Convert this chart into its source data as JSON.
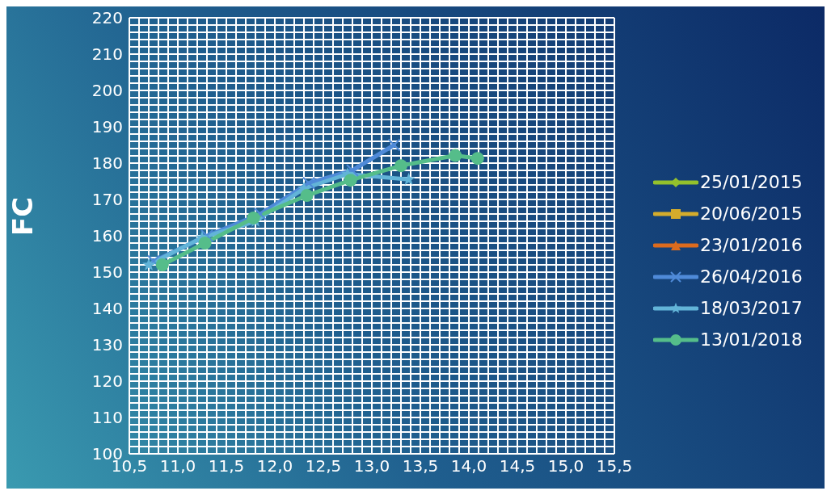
{
  "chart_data": {
    "type": "line",
    "ylabel": "FC",
    "xlim": [
      10.5,
      15.5
    ],
    "xticks": [
      {
        "value": 10.5,
        "label": "10,5"
      },
      {
        "value": 10.6,
        "label": null
      },
      {
        "value": 10.7,
        "label": null
      },
      {
        "value": 10.8,
        "label": null
      },
      {
        "value": 10.9,
        "label": null
      },
      {
        "value": 11,
        "label": "11,0"
      },
      {
        "value": 11.1,
        "label": null
      },
      {
        "value": 11.2,
        "label": null
      },
      {
        "value": 11.3,
        "label": null
      },
      {
        "value": 11.4,
        "label": null
      },
      {
        "value": 11.5,
        "label": "11,5"
      },
      {
        "value": 11.6,
        "label": null
      },
      {
        "value": 11.7,
        "label": null
      },
      {
        "value": 11.8,
        "label": null
      },
      {
        "value": 11.9,
        "label": null
      },
      {
        "value": 12,
        "label": "12,0"
      },
      {
        "value": 12.1,
        "label": null
      },
      {
        "value": 12.2,
        "label": null
      },
      {
        "value": 12.3,
        "label": null
      },
      {
        "value": 12.4,
        "label": null
      },
      {
        "value": 12.5,
        "label": "12,5"
      },
      {
        "value": 12.6,
        "label": null
      },
      {
        "value": 12.7,
        "label": null
      },
      {
        "value": 12.8,
        "label": null
      },
      {
        "value": 12.9,
        "label": null
      },
      {
        "value": 13,
        "label": "13,0"
      },
      {
        "value": 13.1,
        "label": null
      },
      {
        "value": 13.2,
        "label": null
      },
      {
        "value": 13.3,
        "label": null
      },
      {
        "value": 13.4,
        "label": null
      },
      {
        "value": 13.5,
        "label": "13,5"
      },
      {
        "value": 13.6,
        "label": null
      },
      {
        "value": 13.7,
        "label": null
      },
      {
        "value": 13.8,
        "label": null
      },
      {
        "value": 13.9,
        "label": null
      },
      {
        "value": 14,
        "label": "14,0"
      },
      {
        "value": 14.1,
        "label": null
      },
      {
        "value": 14.2,
        "label": null
      },
      {
        "value": 14.3,
        "label": null
      },
      {
        "value": 14.4,
        "label": null
      },
      {
        "value": 14.5,
        "label": "14,5"
      },
      {
        "value": 14.6,
        "label": null
      },
      {
        "value": 14.7,
        "label": null
      },
      {
        "value": 14.8,
        "label": null
      },
      {
        "value": 14.9,
        "label": null
      },
      {
        "value": 15,
        "label": "15,0"
      },
      {
        "value": 15.1,
        "label": null
      },
      {
        "value": 15.2,
        "label": null
      },
      {
        "value": 15.3,
        "label": null
      },
      {
        "value": 15.4,
        "label": null
      },
      {
        "value": 15.5,
        "label": "15,5"
      }
    ],
    "ylim": [
      100,
      220
    ],
    "yticks": [
      100,
      {
        "value": 102,
        "label": null
      },
      {
        "value": 104,
        "label": null
      },
      {
        "value": 106,
        "label": null
      },
      {
        "value": 108,
        "label": null
      },
      110,
      {
        "value": 112,
        "label": null
      },
      {
        "value": 114,
        "label": null
      },
      {
        "value": 116,
        "label": null
      },
      {
        "value": 118,
        "label": null
      },
      120,
      {
        "value": 122,
        "label": null
      },
      {
        "value": 124,
        "label": null
      },
      {
        "value": 126,
        "label": null
      },
      {
        "value": 128,
        "label": null
      },
      130,
      {
        "value": 132,
        "label": null
      },
      {
        "value": 134,
        "label": null
      },
      {
        "value": 136,
        "label": null
      },
      {
        "value": 138,
        "label": null
      },
      140,
      {
        "value": 142,
        "label": null
      },
      {
        "value": 144,
        "label": null
      },
      {
        "value": 146,
        "label": null
      },
      {
        "value": 148,
        "label": null
      },
      150,
      {
        "value": 152,
        "label": null
      },
      {
        "value": 154,
        "label": null
      },
      {
        "value": 156,
        "label": null
      },
      {
        "value": 158,
        "label": null
      },
      160,
      {
        "value": 162,
        "label": null
      },
      {
        "value": 164,
        "label": null
      },
      {
        "value": 166,
        "label": null
      },
      {
        "value": 168,
        "label": null
      },
      170,
      {
        "value": 172,
        "label": null
      },
      {
        "value": 174,
        "label": null
      },
      {
        "value": 176,
        "label": null
      },
      {
        "value": 178,
        "label": null
      },
      180,
      {
        "value": 182,
        "label": null
      },
      {
        "value": 184,
        "label": null
      },
      {
        "value": 186,
        "label": null
      },
      {
        "value": 188,
        "label": null
      },
      190,
      {
        "value": 192,
        "label": null
      },
      {
        "value": 194,
        "label": null
      },
      {
        "value": 196,
        "label": null
      },
      {
        "value": 198,
        "label": null
      },
      200,
      {
        "value": 202,
        "label": null
      },
      {
        "value": 204,
        "label": null
      },
      {
        "value": 206,
        "label": null
      },
      {
        "value": 208,
        "label": null
      },
      210,
      {
        "value": 212,
        "label": null
      },
      {
        "value": 214,
        "label": null
      },
      {
        "value": 216,
        "label": null
      },
      {
        "value": 218,
        "label": null
      },
      220
    ],
    "grid": true,
    "legend": "right",
    "line_style": "solid",
    "series": [
      {
        "name": "25/01/2015",
        "color": "#94c12c",
        "marker": "diamond"
      },
      {
        "name": "20/06/2015",
        "color": "#d4ac2c",
        "marker": "square"
      },
      {
        "name": "23/01/2016",
        "color": "#dc6b1e",
        "marker": "triangle"
      },
      {
        "name": "26/04/2016",
        "color": "#4f8ad8",
        "marker": "cross",
        "x": [
          10.75,
          11.3,
          11.85,
          12.35,
          12.8,
          13.23
        ],
        "values": [
          153,
          160,
          166,
          174.5,
          178,
          185
        ]
      },
      {
        "name": "18/03/2017",
        "color": "#62b4d8",
        "marker": "star",
        "x": [
          10.7,
          11.25,
          11.8,
          12.3,
          12.75,
          13.38
        ],
        "values": [
          152,
          159.5,
          164,
          173,
          177,
          175.5
        ]
      },
      {
        "name": "13/01/2018",
        "color": "#55bd8a",
        "marker": "circle",
        "x": [
          10.84,
          11.28,
          11.78,
          12.33,
          12.78,
          13.3,
          13.86,
          14.09
        ],
        "values": [
          152,
          158,
          164.9,
          171.1,
          175.3,
          179.3,
          182.1,
          181.3
        ]
      }
    ]
  }
}
